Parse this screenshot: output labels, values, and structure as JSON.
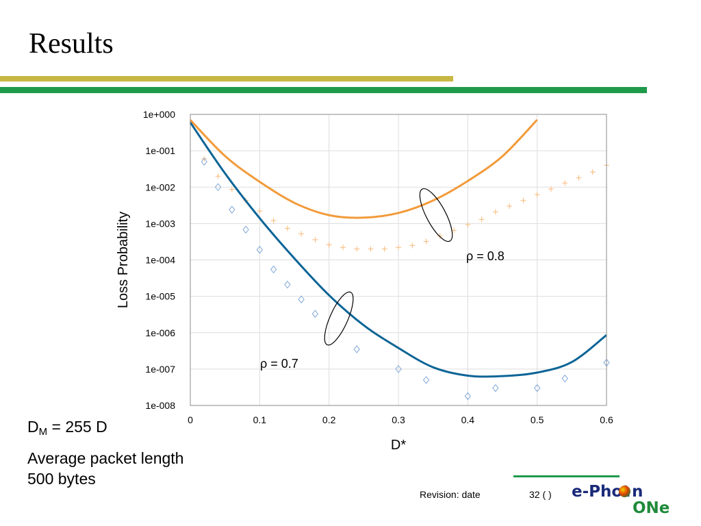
{
  "slide": {
    "title": "Results",
    "notes": {
      "dm_main": "D",
      "dm_sub": "M",
      "dm_rest": " = 255 D",
      "avg_line1": "Average packet length",
      "avg_line2": "500 bytes"
    },
    "footer": {
      "revision": "Revision: date",
      "slide_number": "32 (   )",
      "logo_text_1": "e-Phot",
      "logo_text_2": "n",
      "logo_text_3": "ONe"
    },
    "colors": {
      "gold_bar": "#c9b743",
      "green_bar": "#1f9a4a",
      "orange": "#f29a3a",
      "blue": "#0b6496",
      "light_blue": "#7fa6d6",
      "light_orange": "#f7b97a",
      "logo_navy": "#1a2a7a",
      "logo_green": "#1f8a3a"
    }
  },
  "chart_data": {
    "type": "line",
    "xlabel": "D*",
    "ylabel": "Loss Probability",
    "xlim": [
      0,
      0.6
    ],
    "ylim": [
      1e-08,
      1
    ],
    "yscale": "log",
    "x_ticks": [
      "0",
      "0.1",
      "0.2",
      "0.3",
      "0.4",
      "0.5",
      "0.6"
    ],
    "y_ticks": [
      "1e+000",
      "1e-001",
      "1e-002",
      "1e-003",
      "1e-004",
      "1e-005",
      "1e-006",
      "1e-007",
      "1e-008"
    ],
    "annotations": [
      "ρ = 0.8",
      "ρ = 0.7"
    ],
    "series": [
      {
        "group": "ρ = 0.8",
        "style": "line",
        "x": [
          0,
          0.05,
          0.1,
          0.15,
          0.2,
          0.25,
          0.3,
          0.35,
          0.4,
          0.45,
          0.5
        ],
        "y": [
          0.7,
          0.072,
          0.014,
          0.0037,
          0.0017,
          0.00145,
          0.00195,
          0.0043,
          0.0148,
          0.0708,
          0.71
        ]
      },
      {
        "group": "ρ = 0.8",
        "style": "markers-plus",
        "x": [
          0.02,
          0.04,
          0.06,
          0.08,
          0.1,
          0.12,
          0.14,
          0.16,
          0.18,
          0.2,
          0.22,
          0.24,
          0.26,
          0.28,
          0.3,
          0.32,
          0.34,
          0.36,
          0.38,
          0.4,
          0.42,
          0.44,
          0.46,
          0.48,
          0.5,
          0.52,
          0.54,
          0.56,
          0.58,
          0.6
        ],
        "y": [
          0.06,
          0.02,
          0.0087,
          0.0043,
          0.0022,
          0.0012,
          0.00074,
          0.00052,
          0.00036,
          0.00026,
          0.00022,
          0.0002,
          0.0002,
          0.0002,
          0.00022,
          0.00025,
          0.00032,
          0.00046,
          0.00065,
          0.00093,
          0.0013,
          0.0021,
          0.003,
          0.0043,
          0.0062,
          0.0089,
          0.013,
          0.018,
          0.026,
          0.04
        ]
      },
      {
        "group": "ρ = 0.7",
        "style": "line",
        "x": [
          0,
          0.05,
          0.1,
          0.15,
          0.2,
          0.25,
          0.3,
          0.35,
          0.4,
          0.45,
          0.5,
          0.55,
          0.6
        ],
        "y": [
          0.6,
          0.024,
          0.0014,
          0.00011,
          1.07e-05,
          1.6e-06,
          3.8e-07,
          1.12e-07,
          6.6e-08,
          6.4e-08,
          8e-08,
          1.56e-07,
          8.6e-07
        ]
      },
      {
        "group": "ρ = 0.7",
        "style": "markers-diamond",
        "x": [
          0.02,
          0.04,
          0.06,
          0.08,
          0.1,
          0.12,
          0.14,
          0.16,
          0.18,
          0.24,
          0.3,
          0.34,
          0.4,
          0.44,
          0.5,
          0.54,
          0.6
        ],
        "y": [
          0.05,
          0.01,
          0.0024,
          0.00068,
          0.00019,
          5.5e-05,
          2.1e-05,
          8.2e-06,
          3.3e-06,
          3.5e-07,
          1e-07,
          5e-08,
          1.8e-08,
          3e-08,
          3e-08,
          5.5e-08,
          1.5e-07
        ]
      }
    ]
  }
}
